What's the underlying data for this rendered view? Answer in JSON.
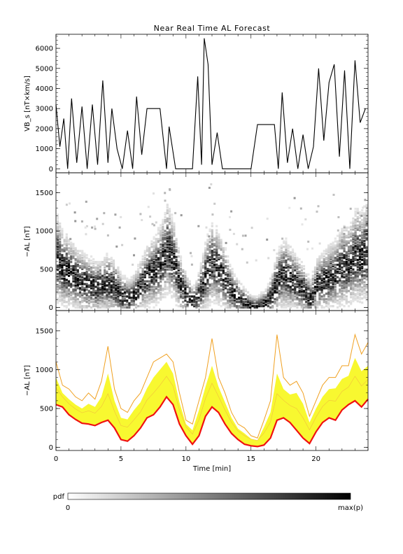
{
  "title": "Near Real Time AL Forecast",
  "chart_data": [
    {
      "type": "line",
      "panel": "top",
      "ylabel": "VB_s [nT×km/s]",
      "xlim": [
        0,
        24
      ],
      "ylim": [
        -200,
        6700
      ],
      "yticks": [
        0,
        1000,
        2000,
        3000,
        4000,
        5000,
        6000
      ],
      "series": [
        {
          "x": [
            0.0,
            0.3,
            0.6,
            0.9,
            1.2,
            1.6,
            2.0,
            2.4,
            2.8,
            3.2,
            3.6,
            4.0,
            4.3,
            4.7,
            5.1,
            5.5,
            5.9,
            6.2,
            6.6,
            7.0,
            7.3,
            7.7,
            8.0,
            8.5,
            8.7,
            9.2,
            9.6,
            10.0,
            10.5,
            10.9,
            11.2,
            11.4,
            11.7,
            12.0,
            12.4,
            12.8,
            13.2,
            13.6,
            14.0,
            14.5,
            15.0,
            15.5,
            15.8,
            16.5,
            16.8,
            17.1,
            17.4,
            17.8,
            18.2,
            18.6,
            19.0,
            19.4,
            19.8,
            20.2,
            20.6,
            21.0,
            21.4,
            21.8,
            22.2,
            22.6,
            23.0,
            23.4,
            23.8
          ],
          "y": [
            3200,
            1100,
            2500,
            0,
            3500,
            300,
            3100,
            0,
            3200,
            200,
            4400,
            300,
            3000,
            1000,
            0,
            1900,
            0,
            3600,
            700,
            3000,
            3000,
            3000,
            3000,
            0,
            2100,
            0,
            0,
            0,
            0,
            4600,
            200,
            6500,
            5200,
            200,
            1800,
            0,
            0,
            0,
            0,
            0,
            0,
            2200,
            2200,
            2200,
            2200,
            0,
            3800,
            300,
            2000,
            0,
            1700,
            0,
            1100,
            5000,
            1400,
            4300,
            5200,
            600,
            4900,
            0,
            5400,
            2300,
            3000
          ]
        }
      ]
    },
    {
      "type": "heatmap",
      "panel": "middle",
      "ylabel": "−AL [nT]",
      "xlim": [
        0,
        24
      ],
      "ylim": [
        -40,
        1760
      ],
      "yticks": [
        0,
        500,
        1000,
        1500
      ],
      "x": [
        0,
        0.5,
        1,
        1.5,
        2,
        2.5,
        3,
        3.5,
        4,
        4.5,
        5,
        5.5,
        6,
        6.5,
        7,
        7.5,
        8,
        8.5,
        9,
        9.5,
        10,
        10.5,
        11,
        11.5,
        12,
        12.5,
        13,
        13.5,
        14,
        14.5,
        15,
        15.5,
        16,
        16.5,
        17,
        17.5,
        18,
        18.5,
        19,
        19.5,
        20,
        20.5,
        21,
        21.5,
        22,
        22.5,
        23,
        23.5,
        24
      ],
      "center": [
        650,
        500,
        450,
        380,
        330,
        300,
        260,
        300,
        320,
        260,
        150,
        120,
        180,
        300,
        420,
        480,
        580,
        780,
        620,
        300,
        150,
        60,
        200,
        450,
        600,
        500,
        350,
        200,
        120,
        60,
        20,
        20,
        50,
        150,
        350,
        450,
        380,
        300,
        220,
        120,
        300,
        350,
        400,
        450,
        550,
        550,
        700,
        650,
        800
      ],
      "spread": [
        250,
        220,
        200,
        180,
        170,
        160,
        150,
        150,
        170,
        150,
        120,
        110,
        120,
        150,
        180,
        200,
        220,
        260,
        220,
        160,
        120,
        90,
        140,
        200,
        230,
        210,
        170,
        130,
        100,
        80,
        60,
        60,
        80,
        120,
        180,
        200,
        180,
        160,
        140,
        110,
        150,
        170,
        190,
        200,
        230,
        230,
        270,
        260,
        300
      ],
      "colorbar": {
        "label": "pdf",
        "min_label": "0",
        "max_label": "max(p)"
      }
    },
    {
      "type": "area",
      "panel": "bottom",
      "ylabel": "−AL [nT]",
      "xlabel": "Time [min]",
      "xlim": [
        0,
        24
      ],
      "ylim": [
        -40,
        1760
      ],
      "yticks": [
        0,
        500,
        1000,
        1500
      ],
      "xticks": [
        0,
        5,
        10,
        15,
        20
      ],
      "x": [
        0.0,
        0.5,
        1.0,
        1.5,
        2.0,
        2.5,
        3.0,
        3.5,
        4.0,
        4.5,
        5.0,
        5.5,
        6.0,
        6.5,
        7.0,
        7.5,
        8.0,
        8.5,
        9.0,
        9.5,
        10.0,
        10.5,
        11.0,
        11.5,
        12.0,
        12.5,
        13.0,
        13.5,
        14.0,
        14.5,
        15.0,
        15.5,
        16.0,
        16.5,
        17.0,
        17.5,
        18.0,
        18.5,
        19.0,
        19.5,
        20.0,
        20.5,
        21.0,
        21.5,
        22.0,
        22.5,
        23.0,
        23.5,
        24.0
      ],
      "series": [
        {
          "name": "",
          "role": "median",
          "color": "#f01010",
          "values": [
            550,
            520,
            420,
            360,
            310,
            300,
            280,
            320,
            350,
            250,
            100,
            80,
            150,
            250,
            380,
            420,
            520,
            650,
            550,
            300,
            150,
            40,
            150,
            400,
            520,
            450,
            300,
            180,
            100,
            40,
            20,
            10,
            30,
            120,
            350,
            380,
            320,
            220,
            120,
            50,
            200,
            320,
            380,
            350,
            480,
            550,
            600,
            520,
            620
          ]
        },
        {
          "name": "",
          "role": "upper",
          "color": "#f0a020",
          "values": [
            1100,
            800,
            750,
            650,
            600,
            700,
            620,
            850,
            1300,
            750,
            500,
            450,
            600,
            700,
            900,
            1100,
            1150,
            1200,
            1100,
            700,
            350,
            300,
            600,
            900,
            1400,
            900,
            700,
            450,
            300,
            250,
            150,
            120,
            350,
            600,
            1450,
            900,
            800,
            850,
            700,
            400,
            600,
            800,
            900,
            900,
            1050,
            1050,
            1450,
            1200,
            1350
          ]
        },
        {
          "name": "",
          "role": "band",
          "color": "#f8f830",
          "values": [
            900,
            700,
            620,
            550,
            500,
            560,
            520,
            650,
            950,
            600,
            380,
            360,
            480,
            580,
            760,
            900,
            1000,
            1100,
            950,
            580,
            300,
            220,
            480,
            780,
            1050,
            780,
            580,
            380,
            240,
            180,
            110,
            90,
            260,
            450,
            950,
            750,
            680,
            700,
            560,
            320,
            500,
            650,
            750,
            760,
            880,
            920,
            1150,
            980,
            1050
          ]
        }
      ]
    }
  ]
}
